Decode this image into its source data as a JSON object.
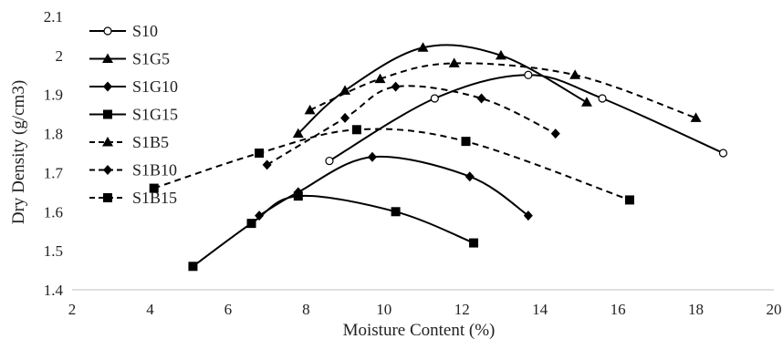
{
  "chart_data": {
    "type": "line",
    "title": "",
    "xlabel": "Moisture Content (%)",
    "ylabel": "Dry Density (g/cm3)",
    "xlim": [
      2,
      20
    ],
    "ylim": [
      1.4,
      2.1
    ],
    "x_ticks": [
      "2",
      "4",
      "6",
      "8",
      "10",
      "12",
      "14",
      "16",
      "18",
      "20"
    ],
    "y_ticks": [
      "1.4",
      "1.5",
      "1.6",
      "1.7",
      "1.8",
      "1.9",
      "2",
      "2.1"
    ],
    "grid": false,
    "legend_position": "top-left",
    "series": [
      {
        "name": "S10",
        "marker": "circle-open",
        "dash": "solid",
        "points": [
          [
            8.6,
            1.73
          ],
          [
            11.3,
            1.89
          ],
          [
            13.7,
            1.95
          ],
          [
            15.6,
            1.89
          ],
          [
            18.7,
            1.75
          ]
        ]
      },
      {
        "name": "S1G5",
        "marker": "triangle",
        "dash": "solid",
        "points": [
          [
            7.8,
            1.8
          ],
          [
            9.0,
            1.91
          ],
          [
            11.0,
            2.02
          ],
          [
            13.0,
            2.0
          ],
          [
            15.2,
            1.88
          ]
        ]
      },
      {
        "name": "S1G10",
        "marker": "diamond",
        "dash": "solid",
        "points": [
          [
            6.8,
            1.59
          ],
          [
            7.8,
            1.65
          ],
          [
            9.7,
            1.74
          ],
          [
            12.2,
            1.69
          ],
          [
            13.7,
            1.59
          ]
        ]
      },
      {
        "name": "S1G15",
        "marker": "square",
        "dash": "solid",
        "points": [
          [
            5.1,
            1.46
          ],
          [
            6.6,
            1.57
          ],
          [
            7.8,
            1.64
          ],
          [
            10.3,
            1.6
          ],
          [
            12.3,
            1.52
          ]
        ]
      },
      {
        "name": "S1B5",
        "marker": "triangle",
        "dash": "dashed",
        "points": [
          [
            8.1,
            1.86
          ],
          [
            9.9,
            1.94
          ],
          [
            11.8,
            1.98
          ],
          [
            14.9,
            1.95
          ],
          [
            18.0,
            1.84
          ]
        ]
      },
      {
        "name": "S1B10",
        "marker": "diamond",
        "dash": "dashed",
        "points": [
          [
            7.0,
            1.72
          ],
          [
            9.0,
            1.84
          ],
          [
            10.3,
            1.92
          ],
          [
            12.5,
            1.89
          ],
          [
            14.4,
            1.8
          ]
        ]
      },
      {
        "name": "S1B15",
        "marker": "square",
        "dash": "dashed",
        "points": [
          [
            4.1,
            1.66
          ],
          [
            6.8,
            1.75
          ],
          [
            9.3,
            1.81
          ],
          [
            12.1,
            1.78
          ],
          [
            16.3,
            1.63
          ]
        ]
      }
    ]
  }
}
